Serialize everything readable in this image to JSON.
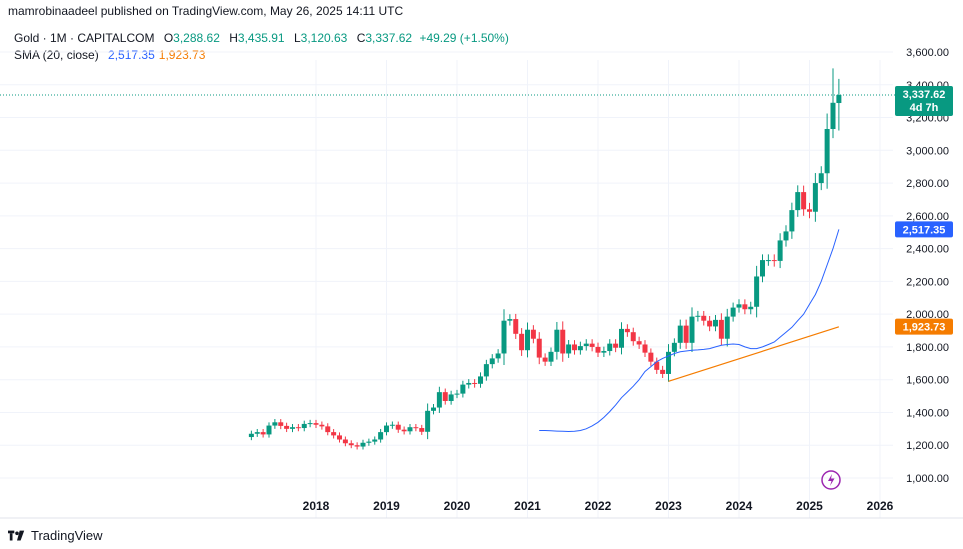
{
  "header": {
    "publisher": "mamrobinaadeel published on TradingView.com, May 26, 2025 14:11 UTC"
  },
  "legend": {
    "symbol": "Gold · 1M · CAPITALCOM",
    "o_label": "O",
    "o_value": "3,288.62",
    "h_label": "H",
    "h_value": "3,435.91",
    "l_label": "L",
    "l_value": "3,120.63",
    "c_label": "C",
    "c_value": "3,337.62",
    "change": "+49.29 (+1.50%)",
    "sma_title": "SMA (20, close)",
    "sma_value_1": "2,517.35",
    "sma_value_2": "1,923.73"
  },
  "price_badge": {
    "price": "3,337.62",
    "countdown": "4d 7h"
  },
  "sma_badges": [
    "2,517.35",
    "1,923.73"
  ],
  "footer": {
    "brand": "TradingView"
  },
  "colors": {
    "up": "#089981",
    "down": "#f23645",
    "sma_blue": "#2962ff",
    "sma_orange": "#f57c00",
    "badge_green": "#089981",
    "badge_blue": "#2962ff",
    "badge_orange": "#f57c00"
  },
  "chart_data": {
    "type": "candlestick",
    "interval": "1M",
    "ylim": [
      900,
      3700
    ],
    "y_ticks": [
      "1,000.00",
      "1,200.00",
      "1,400.00",
      "1,600.00",
      "1,800.00",
      "2,000.00",
      "2,200.00",
      "2,400.00",
      "2,600.00",
      "2,800.00",
      "3,000.00",
      "3,200.00",
      "3,400.00",
      "3,600.00"
    ],
    "x_ticks": [
      "2018",
      "2019",
      "2020",
      "2021",
      "2022",
      "2023",
      "2024",
      "2025",
      "2026"
    ],
    "close_series": [
      1270,
      1280,
      1266,
      1320,
      1340,
      1318,
      1300,
      1310,
      1305,
      1330,
      1335,
      1325,
      1315,
      1280,
      1260,
      1235,
      1212,
      1200,
      1192,
      1215,
      1222,
      1235,
      1280,
      1320,
      1325,
      1295,
      1285,
      1310,
      1305,
      1282,
      1410,
      1430,
      1524,
      1470,
      1510,
      1515,
      1570,
      1580,
      1575,
      1620,
      1695,
      1730,
      1760,
      1960,
      1970,
      1880,
      1780,
      1905,
      1850,
      1735,
      1710,
      1770,
      1905,
      1760,
      1815,
      1780,
      1805,
      1820,
      1800,
      1765,
      1775,
      1820,
      1795,
      1910,
      1890,
      1835,
      1815,
      1765,
      1710,
      1660,
      1635,
      1770,
      1825,
      1930,
      1825,
      1985,
      1990,
      1960,
      1925,
      1965,
      1850,
      1985,
      2040,
      2060,
      2030,
      2045,
      2230,
      2330,
      2330,
      2325,
      2450,
      2505,
      2635,
      2745,
      2640,
      2625,
      2800,
      2860,
      3130,
      3290,
      3338
    ],
    "sma20_blue_approx": [
      1290,
      1290,
      1288,
      1286,
      1285,
      1284,
      1285,
      1290,
      1300,
      1318,
      1340,
      1370,
      1405,
      1445,
      1490,
      1525,
      1560,
      1600,
      1650,
      1680,
      1710,
      1730,
      1745,
      1760,
      1770,
      1775,
      1780,
      1782,
      1785,
      1790,
      1800,
      1810,
      1815,
      1818,
      1815,
      1800,
      1790,
      1790,
      1800,
      1815,
      1830,
      1860,
      1890,
      1920,
      1960,
      2000,
      2060,
      2120,
      2200,
      2300,
      2400,
      2517
    ],
    "sma20_orange_approx": [
      1590,
      1923
    ]
  }
}
